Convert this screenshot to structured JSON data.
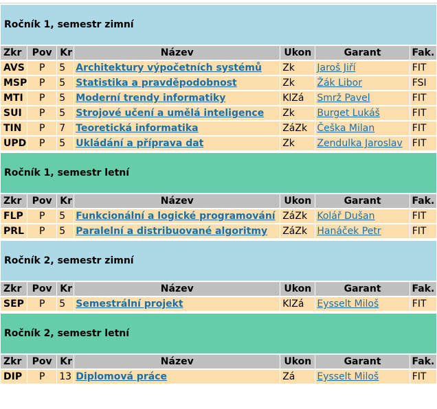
{
  "headers": {
    "zkr": "Zkr",
    "pov": "Pov",
    "kr": "Kr",
    "nazev": "Název",
    "ukon": "Ukon",
    "garant": "Garant",
    "fak": "Fak."
  },
  "sections": [
    {
      "title": "Ročník 1, semestr zimní",
      "kind": "winter",
      "rows": [
        {
          "zkr": "AVS",
          "pov": "P",
          "kr": "5",
          "nazev": "Architektury výpočetních systémů",
          "ukon": "Zk",
          "garant": "Jaroš Jiří",
          "fak": "FIT"
        },
        {
          "zkr": "MSP",
          "pov": "P",
          "kr": "5",
          "nazev": "Statistika a pravděpodobnost",
          "ukon": "Zk",
          "garant": "Žák Libor",
          "fak": "FSI"
        },
        {
          "zkr": "MTI",
          "pov": "P",
          "kr": "5",
          "nazev": "Moderní trendy informatiky",
          "ukon": "KlZá",
          "garant": "Smrž Pavel",
          "fak": "FIT"
        },
        {
          "zkr": "SUI",
          "pov": "P",
          "kr": "5",
          "nazev": "Strojové učení a umělá inteligence",
          "ukon": "Zk",
          "garant": "Burget Lukáš",
          "fak": "FIT"
        },
        {
          "zkr": "TIN",
          "pov": "P",
          "kr": "7",
          "nazev": "Teoretická informatika",
          "ukon": "ZáZk",
          "garant": "Češka Milan",
          "fak": "FIT"
        },
        {
          "zkr": "UPD",
          "pov": "P",
          "kr": "5",
          "nazev": "Ukládání a příprava dat",
          "ukon": "Zk",
          "garant": "Zendulka Jaroslav",
          "fak": "FIT"
        }
      ]
    },
    {
      "title": "Ročník 1, semestr letní",
      "kind": "summer",
      "rows": [
        {
          "zkr": "FLP",
          "pov": "P",
          "kr": "5",
          "nazev": "Funkcionální a logické programování",
          "ukon": "ZáZk",
          "garant": "Kolář Dušan",
          "fak": "FIT"
        },
        {
          "zkr": "PRL",
          "pov": "P",
          "kr": "5",
          "nazev": "Paralelní a distribuované algoritmy",
          "ukon": "ZáZk",
          "garant": "Hanáček Petr",
          "fak": "FIT"
        }
      ]
    },
    {
      "title": "Ročník 2, semestr zimní",
      "kind": "winter",
      "rows": [
        {
          "zkr": "SEP",
          "pov": "P",
          "kr": "5",
          "nazev": "Semestrální projekt",
          "ukon": "KlZá",
          "garant": "Eysselt Miloš",
          "fak": "FIT"
        }
      ]
    },
    {
      "title": "Ročník 2, semestr letní",
      "kind": "summer",
      "rows": [
        {
          "zkr": "DIP",
          "pov": "P",
          "kr": "13",
          "nazev": "Diplomová práce",
          "ukon": "Zá",
          "garant": "Eysselt Miloš",
          "fak": "FIT"
        }
      ]
    }
  ]
}
